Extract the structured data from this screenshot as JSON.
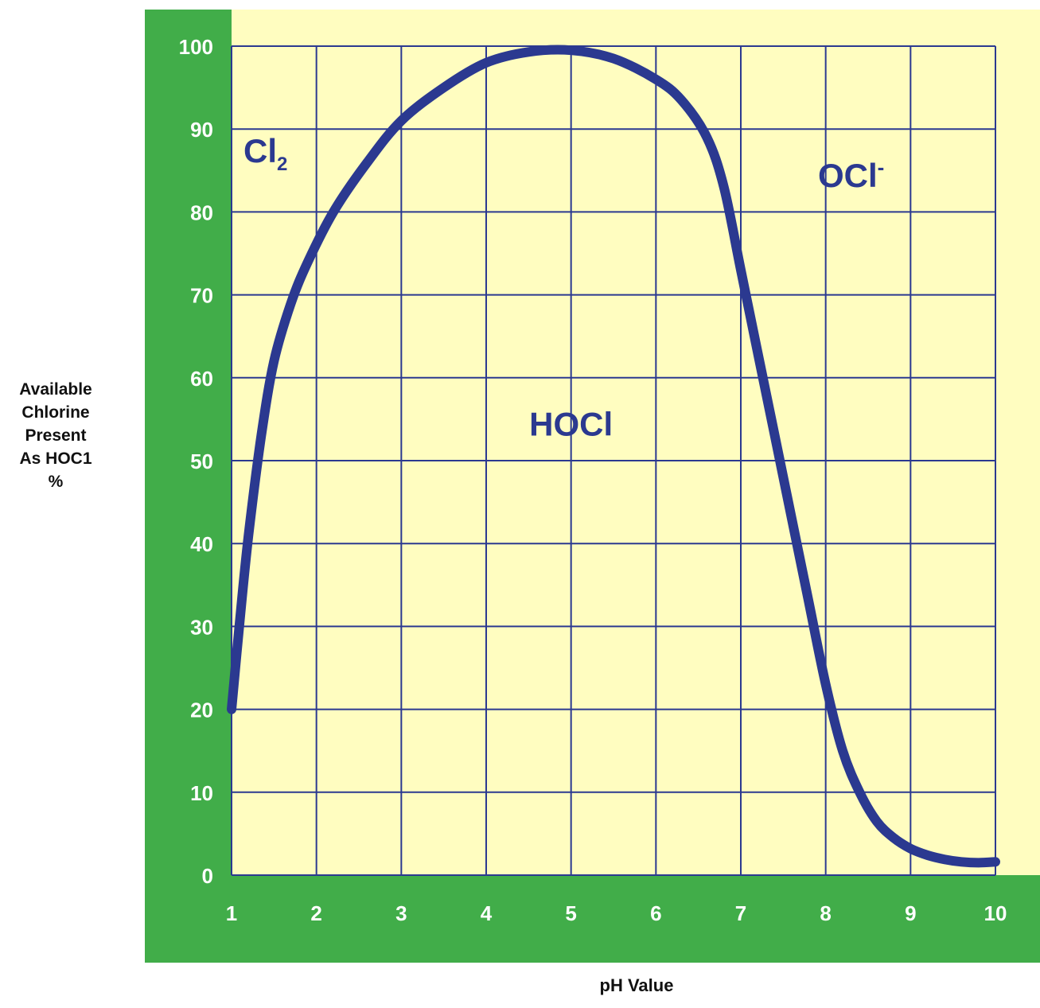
{
  "chart_data": {
    "type": "line",
    "title": "",
    "xlabel": "pH Value",
    "ylabel_lines": [
      "Available",
      "Chlorine",
      "Present",
      "As HOC1",
      "%"
    ],
    "xlim": [
      1,
      10
    ],
    "ylim": [
      0,
      100
    ],
    "x_ticks": [
      "1",
      "2",
      "3",
      "4",
      "5",
      "6",
      "7",
      "8",
      "9",
      "10"
    ],
    "y_ticks": [
      "0",
      "10",
      "20",
      "30",
      "40",
      "50",
      "60",
      "70",
      "80",
      "90",
      "100"
    ],
    "grid": true,
    "series": [
      {
        "x": [
          1.0,
          1.1,
          1.2,
          1.35,
          1.5,
          1.7,
          1.9,
          2.2,
          2.6,
          3.0,
          3.5,
          4.0,
          4.5,
          5.0,
          5.5,
          6.0,
          6.3,
          6.6,
          6.8,
          7.0,
          7.2,
          7.4,
          7.6,
          7.8,
          8.0,
          8.2,
          8.4,
          8.6,
          8.8,
          9.0,
          9.2,
          9.4,
          9.6,
          9.8,
          10.0
        ],
        "y": [
          20,
          31,
          41,
          53,
          62,
          69,
          74,
          80,
          86,
          91,
          95,
          98,
          99.3,
          99.5,
          98.5,
          96,
          93.5,
          89,
          83,
          73,
          63,
          53,
          43,
          33,
          23,
          15,
          10,
          6.5,
          4.5,
          3.2,
          2.4,
          1.9,
          1.6,
          1.5,
          1.6
        ]
      }
    ],
    "line_color": "#2b3990",
    "annotations": [
      {
        "text": "Cl",
        "sub": "2",
        "x": 1.4,
        "y": 86
      },
      {
        "text": "OCl",
        "sup": "-",
        "x": 8.3,
        "y": 83
      },
      {
        "text": "HOCl",
        "x": 5.0,
        "y": 53
      }
    ]
  },
  "colors": {
    "frame": "#41ad49",
    "plot_bg": "#fffdc0",
    "grid": "#2b3990",
    "tick_label": "#ffffff",
    "annotation": "#2b3990",
    "axis_title": "#111111"
  }
}
